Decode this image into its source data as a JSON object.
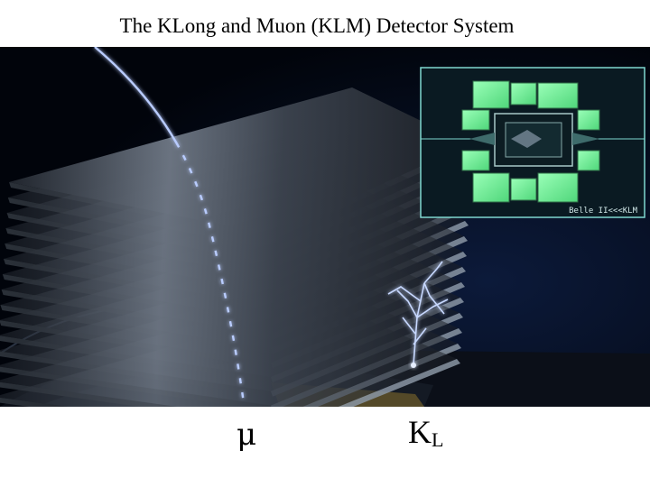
{
  "slide": {
    "title": "The KLong and Muon (KLM) Detector System"
  },
  "inset": {
    "label": "Belle II<<<KLM"
  },
  "captions": {
    "muon_symbol": "μ",
    "klong_symbol": "K",
    "klong_subscript": "L"
  },
  "colors": {
    "background": "#02060f",
    "track": "#9fb8ff",
    "plate": "#4a5566",
    "klm_green": "#6dff9a",
    "inset_frame": "#7fd8d0"
  },
  "icons": {
    "muon_track": "curved-track-line",
    "kl_shower": "branching-shower"
  }
}
